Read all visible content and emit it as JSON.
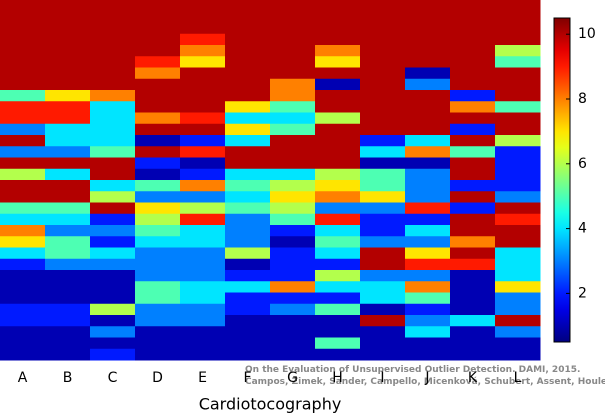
{
  "chart_data": {
    "type": "heatmap",
    "xlabel": "Cardiotocography",
    "categories": [
      "A",
      "B",
      "C",
      "D",
      "E",
      "F",
      "G",
      "H",
      "I",
      "J",
      "K",
      "L"
    ],
    "colormap": "jet",
    "clim": [
      0.5,
      10.5
    ],
    "cticks": [
      2,
      4,
      6,
      8,
      10
    ],
    "annotation": [
      "On the Evaluation of Unsupervised Outlier Detection. DAMI, 2015.",
      "Campos, Zimek, Sander, Campello, Micenková, Schubert, Assent, Houle"
    ],
    "values": [
      [
        10,
        10,
        10,
        10,
        10,
        10,
        10,
        10,
        5,
        9,
        9,
        3,
        10,
        3,
        10,
        6,
        10,
        10,
        5,
        4,
        8,
        7,
        4,
        2,
        1,
        1,
        1,
        2,
        2,
        1,
        1,
        1
      ],
      [
        10,
        10,
        10,
        10,
        10,
        10,
        10,
        10,
        7,
        9,
        9,
        4,
        4,
        3,
        10,
        4,
        10,
        10,
        5,
        4,
        3,
        5,
        5,
        3,
        1,
        1,
        1,
        2,
        2,
        1,
        1,
        1
      ],
      [
        10,
        10,
        10,
        10,
        10,
        10,
        10,
        10,
        8,
        4,
        4,
        4,
        4,
        5,
        10,
        10,
        4,
        6,
        10,
        2,
        3,
        2,
        4,
        3,
        1,
        1,
        1,
        6,
        1,
        3,
        1,
        2
      ],
      [
        10,
        10,
        10,
        10,
        10,
        9,
        8,
        10,
        10,
        10,
        8,
        10,
        1,
        10,
        2,
        1,
        5,
        3,
        7,
        6,
        5,
        4,
        3,
        3,
        3,
        5,
        5,
        3,
        3,
        1,
        1,
        1
      ],
      [
        10,
        10,
        10,
        9,
        8,
        7,
        10,
        10,
        10,
        10,
        9,
        10,
        2,
        9,
        1,
        2,
        8,
        3,
        6,
        9,
        4,
        4,
        3,
        3,
        3,
        4,
        4,
        3,
        3,
        1,
        1,
        1
      ],
      [
        10,
        10,
        10,
        10,
        10,
        10,
        10,
        10,
        10,
        7,
        4,
        7,
        4,
        10,
        10,
        4,
        5,
        4,
        5,
        3,
        3,
        3,
        6,
        1,
        2,
        4,
        2,
        2,
        1,
        1,
        1,
        1
      ],
      [
        10,
        10,
        10,
        10,
        10,
        10,
        10,
        8,
        8,
        5,
        4,
        5,
        10,
        10,
        10,
        4,
        6,
        7,
        6,
        5,
        2,
        1,
        2,
        2,
        2,
        8,
        2,
        3,
        1,
        1,
        1,
        1
      ],
      [
        10,
        10,
        10,
        10,
        8,
        7,
        10,
        1,
        10,
        10,
        6,
        10,
        10,
        10,
        10,
        6,
        7,
        8,
        3,
        9,
        4,
        5,
        4,
        2,
        6,
        4,
        2,
        5,
        1,
        1,
        5,
        1
      ],
      [
        10,
        10,
        10,
        10,
        10,
        10,
        10,
        10,
        10,
        10,
        10,
        10,
        2,
        4,
        1,
        5,
        5,
        7,
        3,
        2,
        2,
        3,
        10,
        10,
        3,
        4,
        4,
        1,
        10,
        1,
        1,
        1
      ],
      [
        10,
        10,
        10,
        10,
        10,
        10,
        1,
        3,
        10,
        10,
        10,
        10,
        4,
        8,
        1,
        3,
        3,
        3,
        9,
        2,
        4,
        3,
        7,
        9,
        3,
        8,
        5,
        2,
        3,
        4,
        1,
        1
      ],
      [
        10,
        10,
        10,
        10,
        10,
        10,
        10,
        10,
        2,
        8,
        10,
        2,
        10,
        5,
        10,
        10,
        2,
        10,
        2,
        10,
        10,
        8,
        10,
        9,
        1,
        1,
        1,
        1,
        4,
        1,
        1,
        1
      ],
      [
        10,
        10,
        10,
        10,
        6,
        5,
        10,
        10,
        10,
        5,
        10,
        10,
        6,
        2,
        2,
        2,
        2,
        3,
        10,
        9,
        10,
        10,
        4,
        4,
        4,
        7,
        3,
        3,
        10,
        3,
        1,
        1
      ]
    ]
  }
}
